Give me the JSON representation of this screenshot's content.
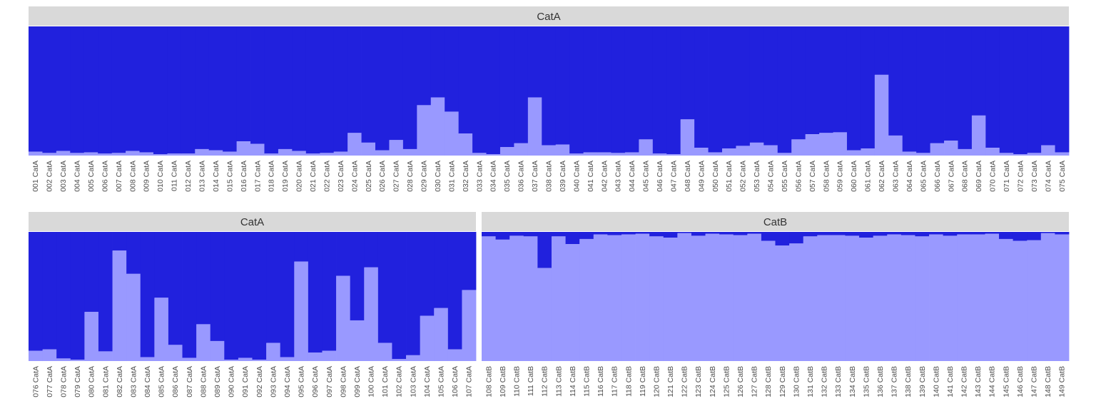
{
  "colors": {
    "background": "#ffffff",
    "strip_fill": "#d9d9d9",
    "strip_text": "#333333",
    "dark_segment": "#2121dd",
    "light_segment": "#9999ff",
    "tick_text": "#4d4d4d"
  },
  "chart_data": {
    "type": "bar",
    "stacked": true,
    "value_scale": [
      0,
      1
    ],
    "grid": false,
    "legend": "none",
    "panels": [
      {
        "label": "CatA",
        "categories": [
          "001 CatA",
          "002 CatA",
          "003 CatA",
          "004 CatA",
          "005 CatA",
          "006 CatA",
          "007 CatA",
          "008 CatA",
          "009 CatA",
          "010 CatA",
          "011 CatA",
          "012 CatA",
          "013 CatA",
          "014 CatA",
          "015 CatA",
          "016 CatA",
          "017 CatA",
          "018 CatA",
          "019 CatA",
          "020 CatA",
          "021 CatA",
          "022 CatA",
          "023 CatA",
          "024 CatA",
          "025 CatA",
          "026 CatA",
          "027 CatA",
          "028 CatA",
          "029 CatA",
          "030 CatA",
          "031 CatA",
          "032 CatA",
          "033 CatA",
          "034 CatA",
          "035 CatA",
          "036 CatA",
          "037 CatA",
          "038 CatA",
          "039 CatA",
          "040 CatA",
          "041 CatA",
          "042 CatA",
          "043 CatA",
          "044 CatA",
          "045 CatA",
          "046 CatA",
          "047 CatA",
          "048 CatA",
          "049 CatA",
          "050 CatA",
          "051 CatA",
          "052 CatA",
          "053 CatA",
          "054 CatA",
          "055 CatA",
          "056 CatA",
          "057 CatA",
          "058 CatA",
          "059 CatA",
          "060 CatA",
          "061 CatA",
          "062 CatA",
          "063 CatA",
          "064 CatA",
          "065 CatA",
          "066 CatA",
          "067 CatA",
          "068 CatA",
          "069 CatA",
          "070 CatA",
          "071 CatA",
          "072 CatA",
          "073 CatA",
          "074 CatA",
          "075 CatA"
        ],
        "light_values": [
          0.03,
          0.02,
          0.035,
          0.02,
          0.025,
          0.015,
          0.02,
          0.035,
          0.025,
          0.01,
          0.015,
          0.015,
          0.05,
          0.04,
          0.03,
          0.11,
          0.09,
          0.015,
          0.05,
          0.035,
          0.015,
          0.02,
          0.03,
          0.175,
          0.1,
          0.04,
          0.12,
          0.05,
          0.39,
          0.45,
          0.34,
          0.17,
          0.02,
          0.01,
          0.065,
          0.095,
          0.45,
          0.08,
          0.085,
          0.015,
          0.025,
          0.025,
          0.02,
          0.025,
          0.125,
          0.015,
          0.01,
          0.28,
          0.06,
          0.025,
          0.055,
          0.075,
          0.1,
          0.08,
          0.02,
          0.125,
          0.165,
          0.175,
          0.18,
          0.04,
          0.055,
          0.625,
          0.155,
          0.03,
          0.02,
          0.095,
          0.115,
          0.05,
          0.31,
          0.06,
          0.02,
          0.01,
          0.02,
          0.08,
          0.025
        ]
      },
      {
        "label": "CatA",
        "categories": [
          "076 CatA",
          "077 CatA",
          "078 CatA",
          "079 CatA",
          "080 CatA",
          "081 CatA",
          "082 CatA",
          "083 CatA",
          "084 CatA",
          "085 CatA",
          "086 CatA",
          "087 CatA",
          "088 CatA",
          "089 CatA",
          "090 CatA",
          "091 CatA",
          "092 CatA",
          "093 CatA",
          "094 CatA",
          "095 CatA",
          "096 CatA",
          "097 CatA",
          "098 CatA",
          "099 CatA",
          "100 CatA",
          "101 CatA",
          "102 CatA",
          "103 CatA",
          "104 CatA",
          "105 CatA",
          "106 CatA",
          "107 CatA"
        ],
        "light_values": [
          0.08,
          0.09,
          0.02,
          0.01,
          0.38,
          0.075,
          0.855,
          0.675,
          0.03,
          0.49,
          0.125,
          0.025,
          0.285,
          0.155,
          0.01,
          0.025,
          0.01,
          0.14,
          0.03,
          0.77,
          0.065,
          0.08,
          0.66,
          0.315,
          0.725,
          0.14,
          0.015,
          0.045,
          0.35,
          0.41,
          0.09,
          0.55
        ]
      },
      {
        "label": "CatB",
        "categories": [
          "108 CatB",
          "109 CatB",
          "110 CatB",
          "111 CatB",
          "112 CatB",
          "113 CatB",
          "114 CatB",
          "115 CatB",
          "116 CatB",
          "117 CatB",
          "118 CatB",
          "119 CatB",
          "120 CatB",
          "121 CatB",
          "122 CatB",
          "123 CatB",
          "124 CatB",
          "125 CatB",
          "126 CatB",
          "127 CatB",
          "128 CatB",
          "129 CatB",
          "130 CatB",
          "131 CatB",
          "132 CatB",
          "133 CatB",
          "134 CatB",
          "135 CatB",
          "136 CatB",
          "137 CatB",
          "138 CatB",
          "139 CatB",
          "140 CatB",
          "141 CatB",
          "142 CatB",
          "143 CatB",
          "144 CatB",
          "145 CatB",
          "146 CatB",
          "147 CatB",
          "148 CatB",
          "149 CatB"
        ],
        "light_values": [
          0.965,
          0.94,
          0.97,
          0.965,
          0.72,
          0.965,
          0.905,
          0.945,
          0.98,
          0.975,
          0.98,
          0.985,
          0.965,
          0.955,
          0.99,
          0.97,
          0.985,
          0.98,
          0.975,
          0.985,
          0.93,
          0.895,
          0.91,
          0.965,
          0.975,
          0.975,
          0.97,
          0.955,
          0.97,
          0.98,
          0.975,
          0.965,
          0.98,
          0.97,
          0.98,
          0.98,
          0.985,
          0.945,
          0.93,
          0.935,
          0.99,
          0.98
        ]
      }
    ]
  }
}
